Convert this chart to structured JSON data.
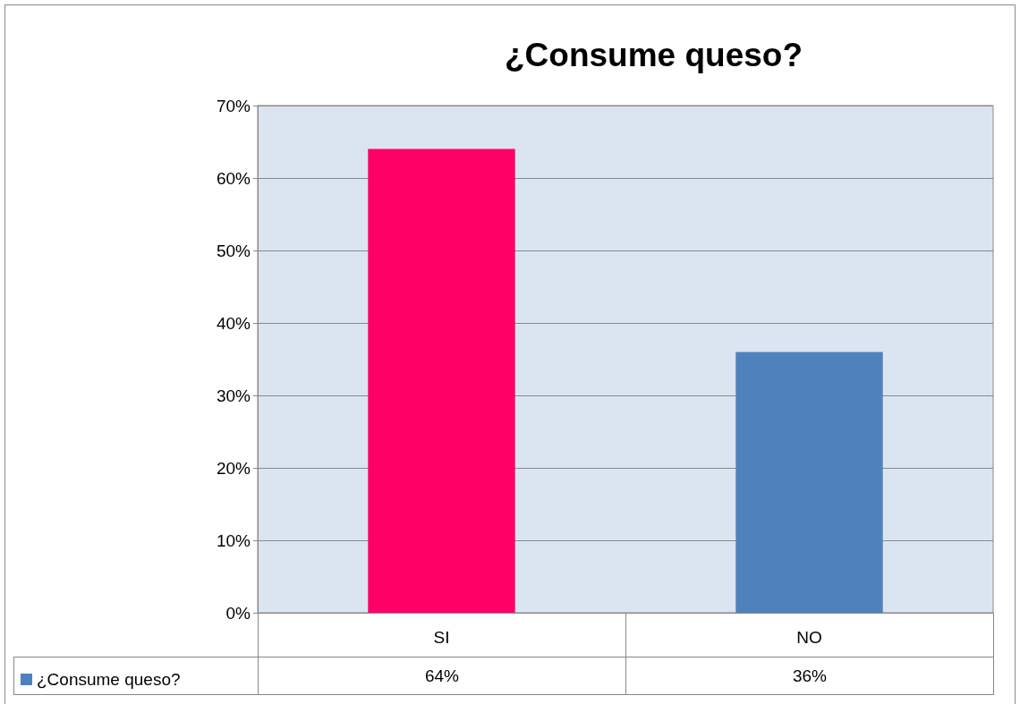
{
  "chart_data": {
    "type": "bar",
    "title": "¿Consume queso?",
    "categories": [
      "SI",
      "NO"
    ],
    "series": [
      {
        "name": "¿Consume queso?",
        "color": "#4f81bd",
        "colors": [
          "#ff0066",
          "#4f81bd"
        ],
        "values": [
          64,
          36
        ],
        "value_labels": [
          "64%",
          "36%"
        ]
      }
    ],
    "ylim": [
      0,
      70
    ],
    "yticks": [
      {
        "value": 0,
        "label": "0%"
      },
      {
        "value": 10,
        "label": "10%"
      },
      {
        "value": 20,
        "label": "20%"
      },
      {
        "value": 30,
        "label": "30%"
      },
      {
        "value": 40,
        "label": "40%"
      },
      {
        "value": 50,
        "label": "50%"
      },
      {
        "value": 60,
        "label": "60%"
      },
      {
        "value": 70,
        "label": "70%"
      }
    ],
    "grid": "y",
    "legend": "bottom left"
  }
}
